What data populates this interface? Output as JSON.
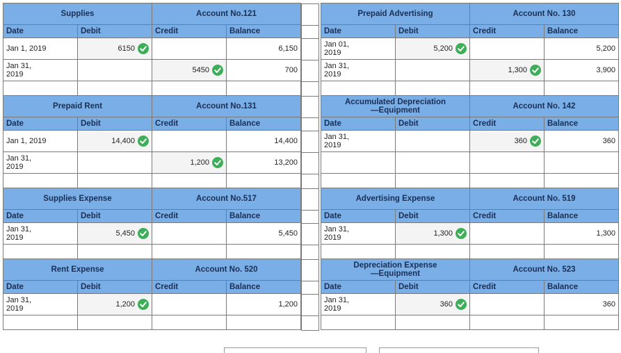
{
  "left_accounts": [
    {
      "name": "Supplies",
      "account_no": "Account No.121",
      "headers": [
        "Date",
        "Debit",
        "Credit",
        "Balance"
      ],
      "rows": [
        {
          "date": "Jan 1, 2019",
          "debit": "6150",
          "debit_check": true,
          "credit": "",
          "credit_check": false,
          "balance": "6,150"
        },
        {
          "date": "Jan 31,\n2019",
          "debit": "",
          "debit_check": false,
          "credit": "5450",
          "credit_check": true,
          "balance": "700"
        }
      ]
    },
    {
      "name": "Prepaid Rent",
      "account_no": "Account No.131",
      "headers": [
        "Date",
        "Debit",
        "Credit",
        "Balance"
      ],
      "rows": [
        {
          "date": "Jan 1, 2019",
          "debit": "14,400",
          "debit_check": true,
          "credit": "",
          "credit_check": false,
          "balance": "14,400"
        },
        {
          "date": "Jan 31,\n2019",
          "debit": "",
          "debit_check": false,
          "credit": "1,200",
          "credit_check": true,
          "balance": "13,200"
        }
      ]
    },
    {
      "name": "Supplies Expense",
      "account_no": "Account No.517",
      "headers": [
        "Date",
        "Debit",
        "Credit",
        "Balance"
      ],
      "rows": [
        {
          "date": "Jan 31,\n2019",
          "debit": "5,450",
          "debit_check": true,
          "credit": "",
          "credit_check": false,
          "balance": "5,450"
        }
      ]
    },
    {
      "name": "Rent Expense",
      "account_no": "Account No. 520",
      "headers": [
        "Date",
        "Debit",
        "Credit",
        "Balance"
      ],
      "rows": [
        {
          "date": "Jan 31,\n2019",
          "debit": "1,200",
          "debit_check": true,
          "credit": "",
          "credit_check": false,
          "balance": "1,200"
        }
      ]
    }
  ],
  "right_accounts": [
    {
      "name": "Prepaid Advertising",
      "account_no": "Account No. 130",
      "headers": [
        "Date",
        "Debit",
        "Credit",
        "Balance"
      ],
      "rows": [
        {
          "date": "Jan 01,\n2019",
          "debit": "5,200",
          "debit_check": true,
          "credit": "",
          "credit_check": false,
          "balance": "5,200"
        },
        {
          "date": "Jan 31,\n2019",
          "debit": "",
          "debit_check": false,
          "credit": "1,300",
          "credit_check": true,
          "balance": "3,900"
        }
      ]
    },
    {
      "name": "Accumulated Depreciation\n—Equipment",
      "account_no": "Account No. 142",
      "headers": [
        "Date",
        "Debit",
        "Credit",
        "Balance"
      ],
      "rows": [
        {
          "date": "Jan 31,\n2019",
          "debit": "",
          "debit_check": false,
          "credit": "360",
          "credit_check": true,
          "balance": "360"
        },
        {
          "date": "",
          "debit": "",
          "debit_check": false,
          "credit": "",
          "credit_check": false,
          "balance": ""
        }
      ]
    },
    {
      "name": "Advertising Expense",
      "account_no": "Account No. 519",
      "headers": [
        "Date",
        "Debit",
        "Credit",
        "Balance"
      ],
      "rows": [
        {
          "date": "Jan 31,\n2019",
          "debit": "1,300",
          "debit_check": true,
          "credit": "",
          "credit_check": false,
          "balance": "1,300"
        }
      ]
    },
    {
      "name": "Depreciation Expense\n—Equipment",
      "account_no": "Account No. 523",
      "headers": [
        "Date",
        "Debit",
        "Credit",
        "Balance"
      ],
      "rows": [
        {
          "date": "Jan 31,\n2019",
          "debit": "360",
          "debit_check": true,
          "credit": "",
          "credit_check": false,
          "balance": "360"
        }
      ]
    }
  ],
  "colors": {
    "header_bg": "#7aaee6",
    "header_text": "#1a2f55",
    "check_green": "#3fae5a",
    "filled_cell": "#f4f4f4"
  },
  "icons": {
    "check": "check-circle-icon"
  }
}
